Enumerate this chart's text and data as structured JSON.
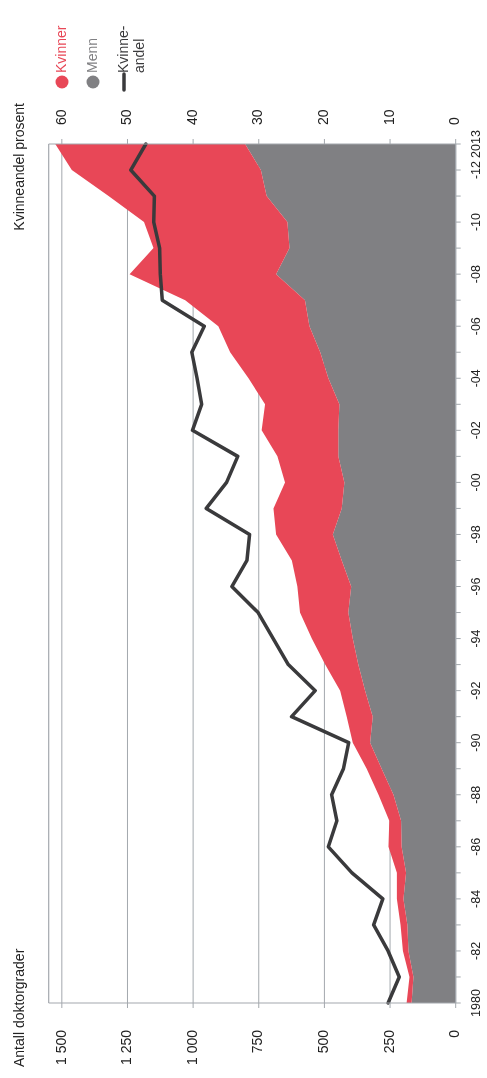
{
  "chart_data": {
    "type": "area",
    "stacked": true,
    "orientation": "horizontal",
    "annotations": [
      "Antall doktorgrader"
    ],
    "x2label": "Kvinneandel prosent",
    "categories": [
      "2013",
      "-12",
      null,
      "-10",
      null,
      "-08",
      null,
      "-06",
      null,
      "-04",
      null,
      "-02",
      null,
      "-00",
      null,
      "-98",
      null,
      "-96",
      null,
      "-94",
      null,
      "-92",
      null,
      "-90",
      null,
      "-88",
      null,
      "-86",
      null,
      "-84",
      null,
      "-82",
      null,
      "1980"
    ],
    "xlim": [
      1550,
      0
    ],
    "xticks": [
      0,
      250,
      500,
      750,
      {
        "value": 1000,
        "label": "1 000"
      },
      {
        "value": 1250,
        "label": "1 250"
      },
      {
        "value": 1500,
        "label": "1 500"
      }
    ],
    "x2lim": [
      62,
      0
    ],
    "x2ticks": [
      0,
      10,
      20,
      30,
      40,
      50,
      60
    ],
    "grid": "x",
    "legend": "top left",
    "series": [
      {
        "name": "Menn",
        "color": "#808083",
        "values": [
          802,
          742,
          720,
          641,
          633,
          684,
          574,
          557,
          516,
          485,
          443,
          447,
          447,
          424,
          434,
          468,
          434,
          398,
          409,
          392,
          371,
          345,
          316,
          326,
          282,
          237,
          208,
          206,
          189,
          199,
          184,
          180,
          161,
          168
        ]
      },
      {
        "name": "Kvinner",
        "color": "#e84757",
        "values": [
          723,
          720,
          602,
          546,
          518,
          558,
          456,
          347,
          343,
          304,
          283,
          292,
          232,
          226,
          260,
          216,
          190,
          205,
          184,
          156,
          126,
          95,
          99,
          66,
          57,
          57,
          45,
          50,
          35,
          25,
          26,
          21,
          15,
          19
        ]
      },
      {
        "name": "Kvinne-\nandel",
        "type": "line",
        "axis": "x2",
        "color": "#3a3a3c",
        "values": [
          47.2,
          49.5,
          45.9,
          46.0,
          45.1,
          45.0,
          44.7,
          38.3,
          40.2,
          39.4,
          38.7,
          40.1,
          33.2,
          34.9,
          38.0,
          31.4,
          31.8,
          34.1,
          30.1,
          27.8,
          25.5,
          21.4,
          25.0,
          16.3,
          17.1,
          18.9,
          18.1,
          19.4,
          15.8,
          11.1,
          12.5,
          10.3,
          8.6,
          10.3
        ]
      }
    ]
  }
}
